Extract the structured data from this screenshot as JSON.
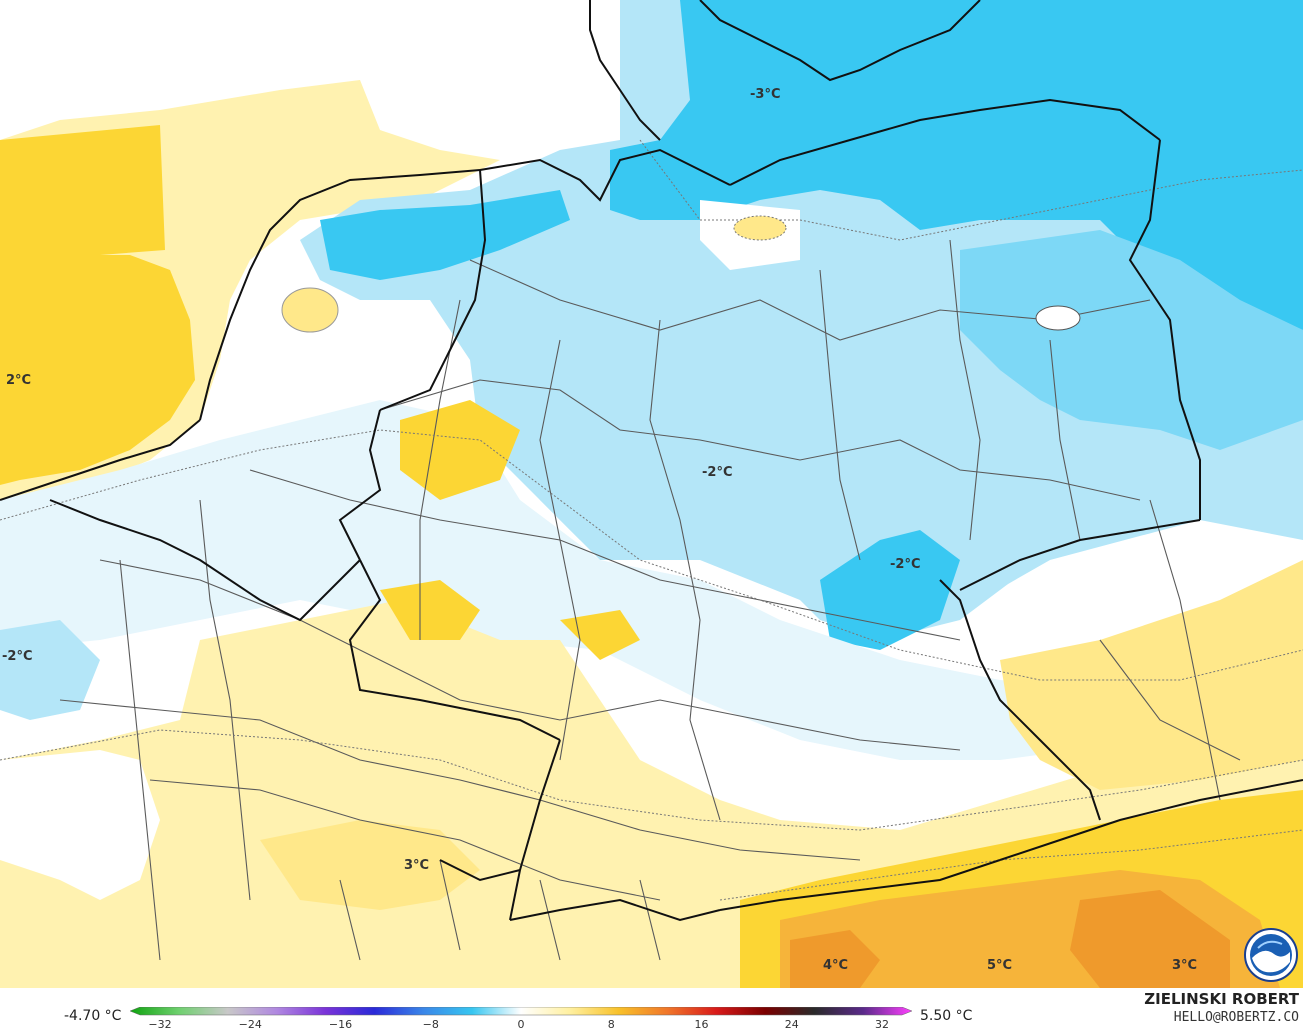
{
  "map": {
    "labels": [
      {
        "text": "-3°C"
      },
      {
        "text": "2°C"
      },
      {
        "text": "-2°C"
      },
      {
        "text": "-2°C"
      },
      {
        "text": "-2°C"
      },
      {
        "text": "3°C"
      },
      {
        "text": "4°C"
      },
      {
        "text": "5°C"
      },
      {
        "text": "3°C"
      }
    ],
    "colors": {
      "land_white": "#ffffff",
      "pale_blue": "#e6f6fc",
      "light_blue": "#b4e6f8",
      "mid_blue": "#7dd8f6",
      "cyan": "#39c8f2",
      "pale_yellow": "#fff6c4",
      "light_yellow": "#ffe88a",
      "yellow": "#fcd634",
      "orange": "#f6b43a",
      "dark_orange": "#ef9a2c",
      "border": "#111111",
      "admin_border": "#5a5a5a"
    }
  },
  "legend": {
    "min_label": "-4.70 °C",
    "max_label": "5.50 °C",
    "ticks": [
      "−32",
      "−24",
      "−16",
      "−8",
      "0",
      "8",
      "16",
      "24",
      "32"
    ],
    "colors": [
      "#0fa30f",
      "#6fd06f",
      "#c8c8c8",
      "#b088e0",
      "#7a33d8",
      "#2a2ad8",
      "#3a86e8",
      "#37c6f0",
      "#ffffff",
      "#fff0a0",
      "#f8c12a",
      "#f0762a",
      "#d81a1a",
      "#7a0000",
      "#2a2a2a",
      "#5a2a8a",
      "#ff40ff"
    ]
  },
  "credit": {
    "name": "ZIELINSKI ROBERT",
    "email": "HELLO@ROBERTZ.CO",
    "logo_icon": "noaa-logo-icon"
  }
}
